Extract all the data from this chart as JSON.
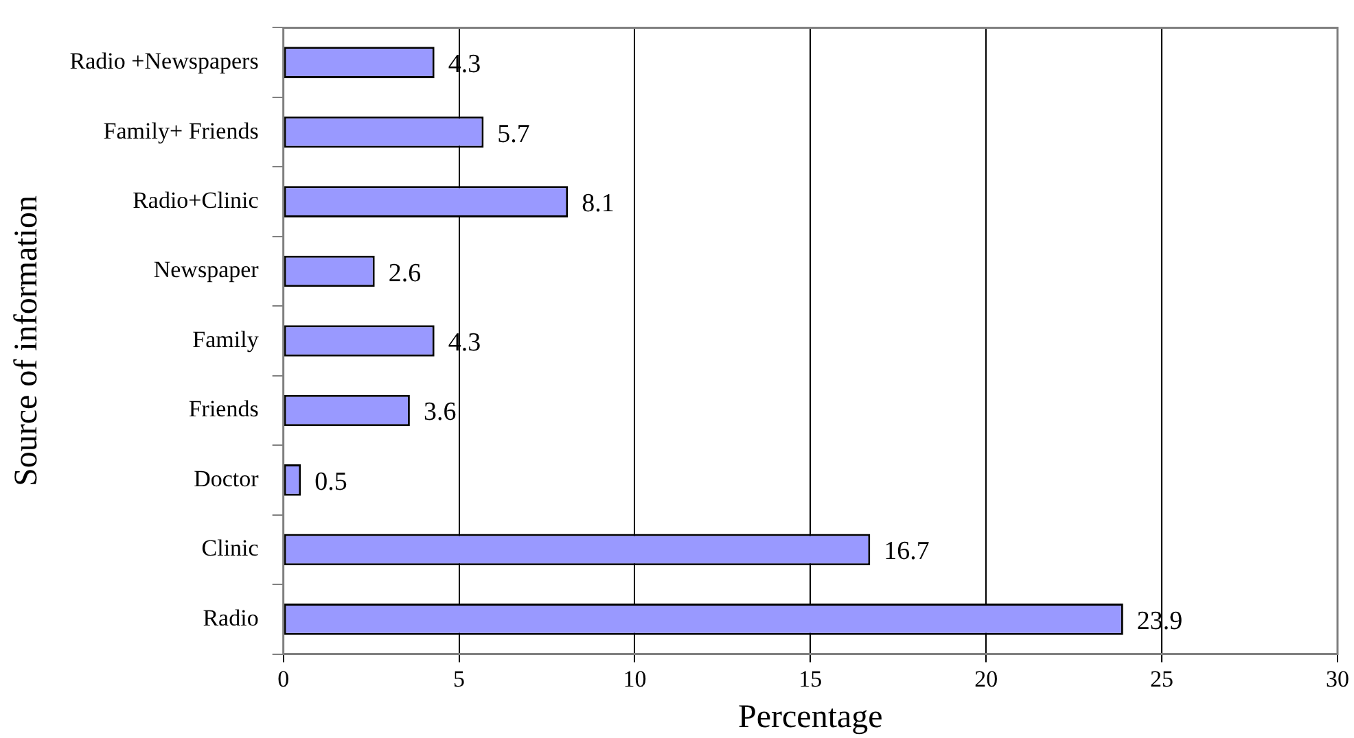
{
  "chart_data": {
    "type": "bar",
    "orientation": "horizontal",
    "xlabel": "Percentage",
    "ylabel": "Source of information",
    "categories": [
      "Radio +Newspapers",
      "Family+ Friends",
      "Radio+Clinic",
      "Newspaper",
      "Family",
      "Friends",
      "Doctor",
      "Clinic",
      "Radio"
    ],
    "values": [
      4.3,
      5.7,
      8.1,
      2.6,
      4.3,
      3.6,
      0.5,
      16.7,
      23.9
    ],
    "color": "#9999ff",
    "xlim": [
      0,
      30
    ],
    "xticks": [
      0,
      5,
      10,
      15,
      20,
      25,
      30
    ],
    "grid": "x",
    "data_labels": true,
    "legend": false
  }
}
